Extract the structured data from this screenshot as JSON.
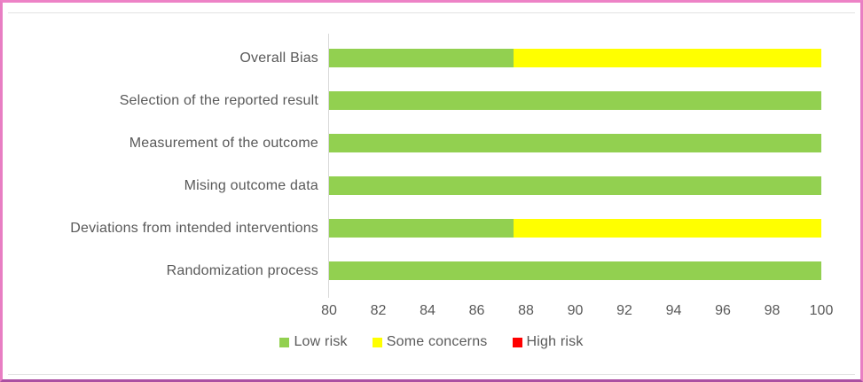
{
  "frame": {
    "border_top_color": "#ED82C6",
    "border_side_color": "#E87EC3",
    "border_bottom_color": "#AB4FA2",
    "inner_rule_color": "#E3E3E3"
  },
  "chart_data": {
    "type": "bar",
    "orientation": "horizontal",
    "stacked": true,
    "title": "",
    "xlabel": "",
    "ylabel": "",
    "categories": [
      "Overall Bias",
      "Selection of the reported result",
      "Measurement of the outcome",
      "Mising outcome data",
      "Deviations from intended interventions",
      "Randomization process"
    ],
    "series": [
      {
        "name": "Low risk",
        "color": "#92D050",
        "values": [
          87.5,
          100,
          100,
          100,
          87.5,
          100
        ]
      },
      {
        "name": "Some concerns",
        "color": "#FFFF00",
        "values": [
          12.5,
          0,
          0,
          0,
          12.5,
          0
        ]
      },
      {
        "name": "High risk",
        "color": "#FF0000",
        "values": [
          0,
          0,
          0,
          0,
          0,
          0
        ]
      }
    ],
    "x_axis": {
      "min": 80,
      "max": 100,
      "ticks": [
        80,
        82,
        84,
        86,
        88,
        90,
        92,
        94,
        96,
        98,
        100
      ]
    },
    "legend": {
      "position": "bottom",
      "entries": [
        {
          "label": "Low risk",
          "color": "#92D050"
        },
        {
          "label": "Some concerns",
          "color": "#FFFF00"
        },
        {
          "label": "High risk",
          "color": "#FF0000"
        }
      ]
    },
    "style_colors": {
      "axis_line": "#D9D9D9",
      "text": "#595959"
    }
  }
}
